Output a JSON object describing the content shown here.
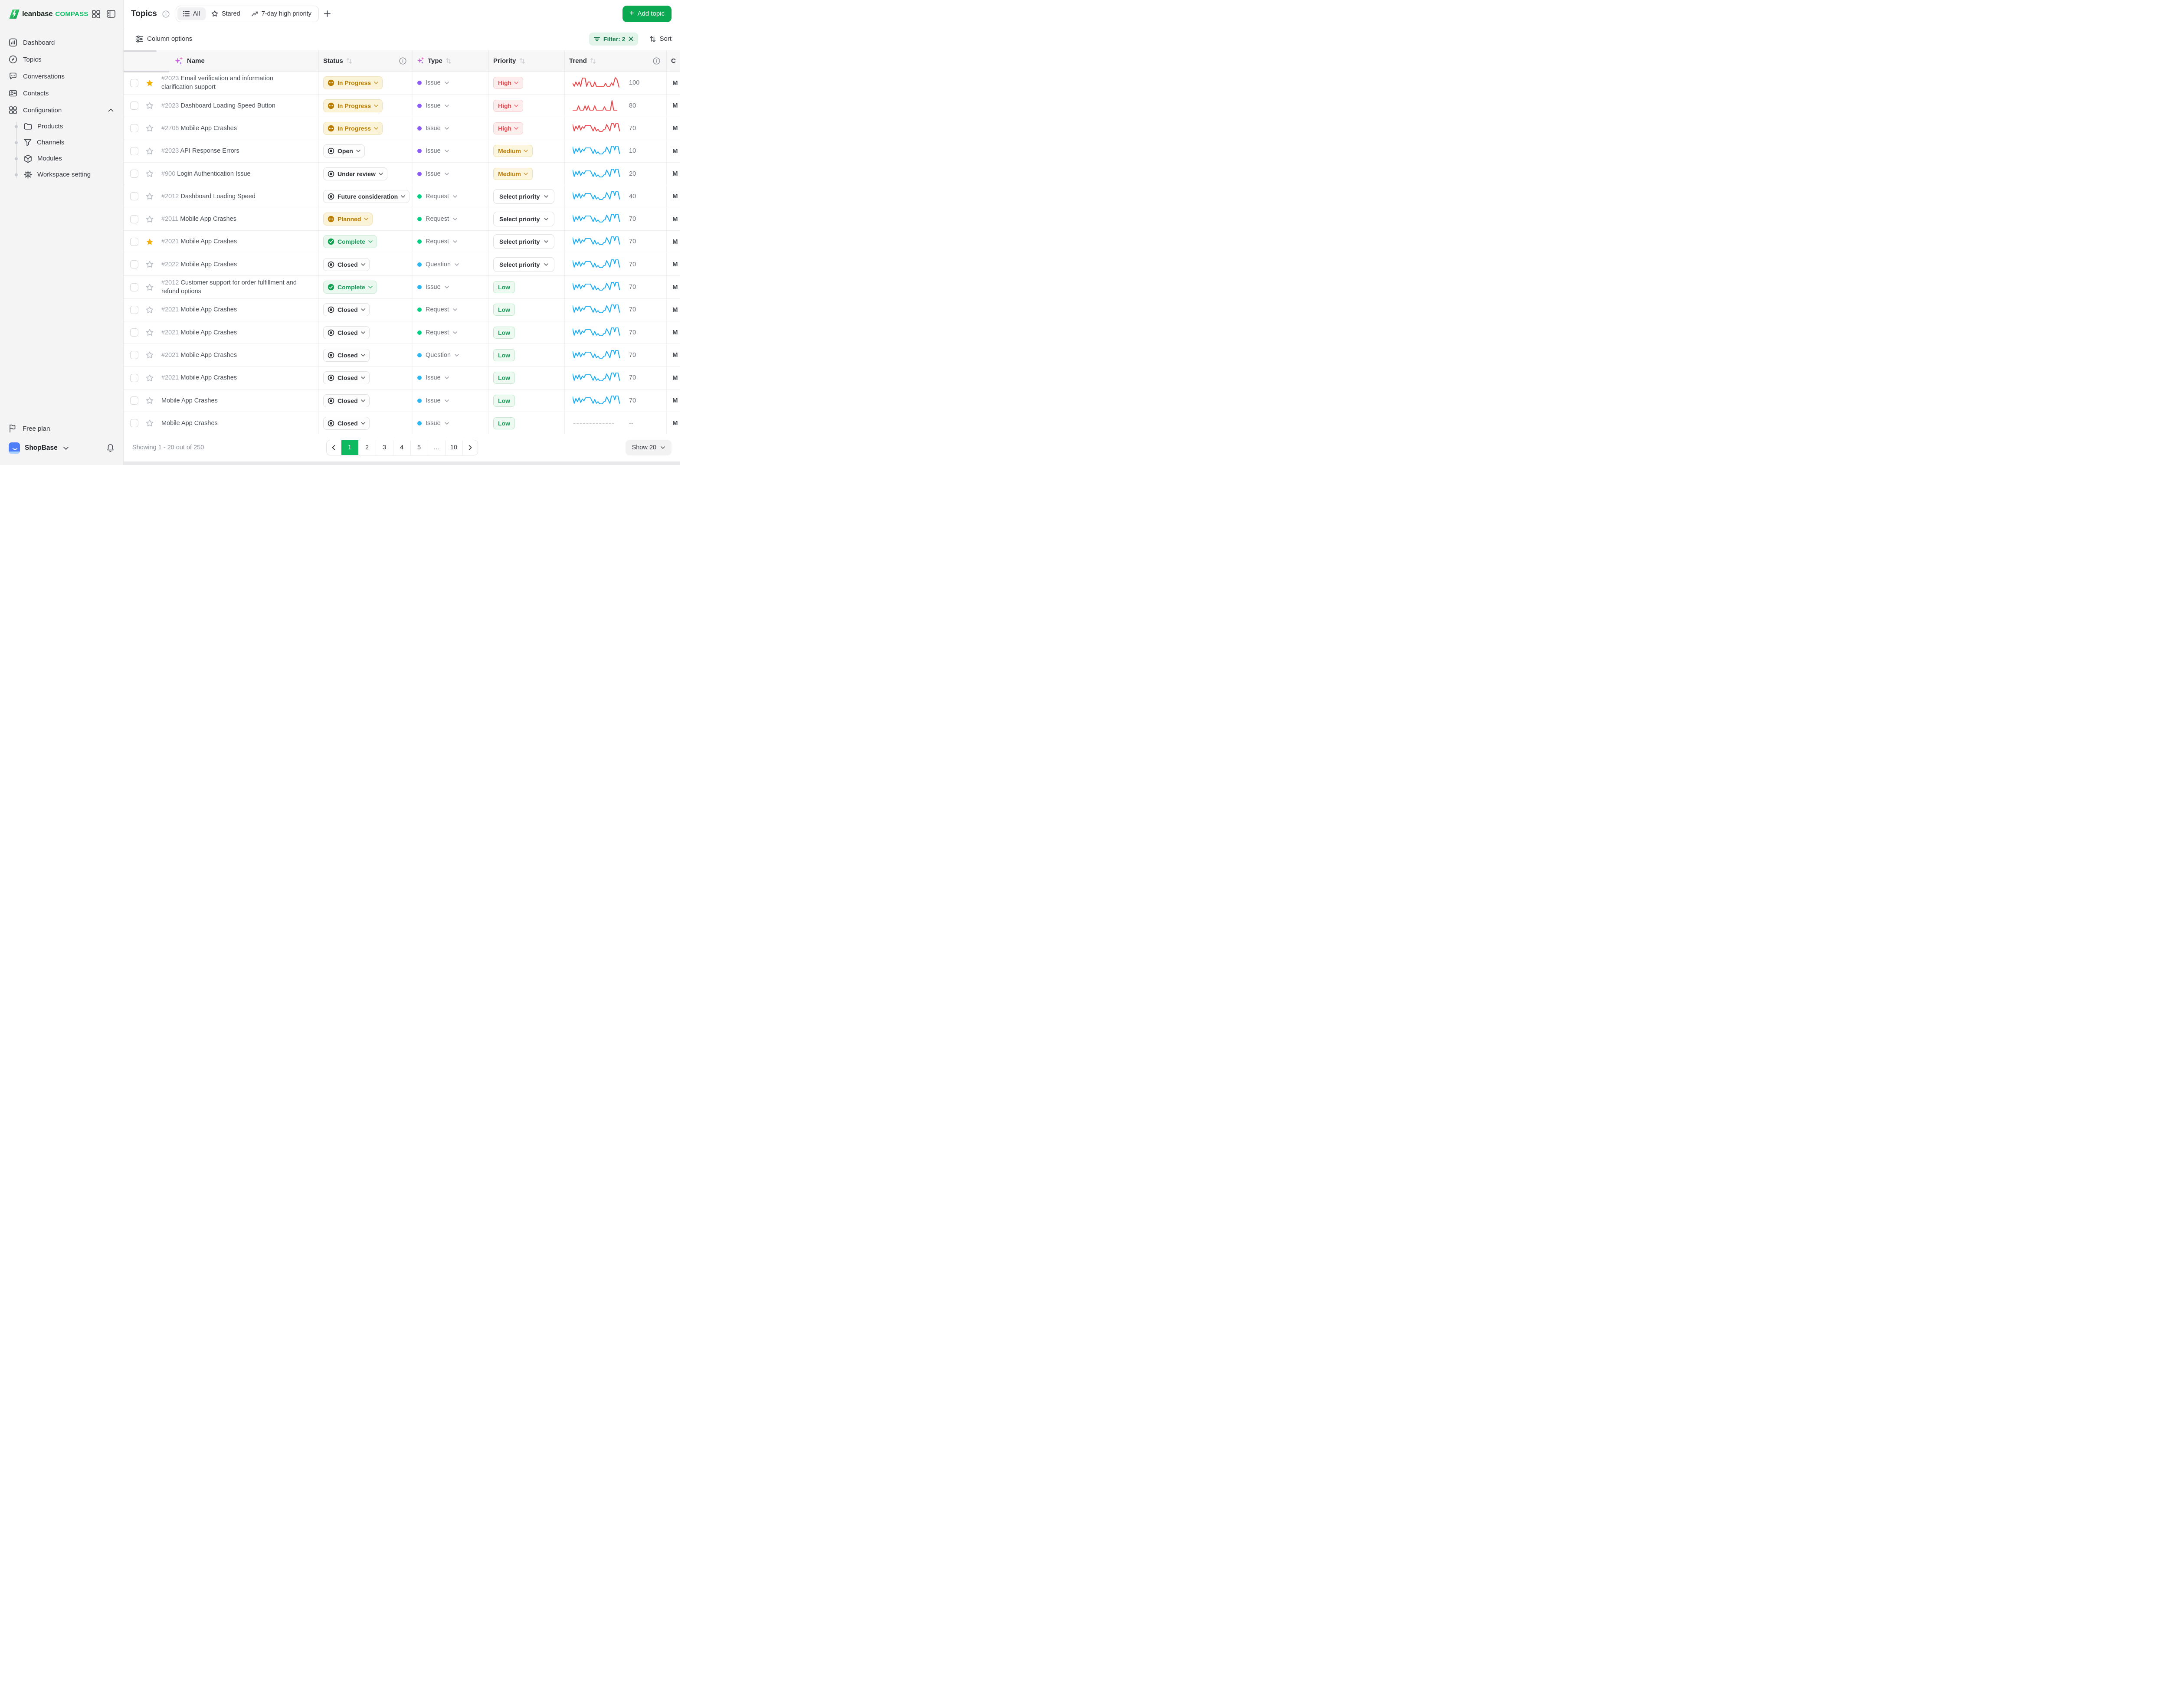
{
  "brand": {
    "name": "leanbase",
    "product": "COMPASS"
  },
  "sidebar": {
    "items": [
      {
        "label": "Dashboard",
        "icon": "bar-chart"
      },
      {
        "label": "Topics",
        "icon": "compass"
      },
      {
        "label": "Conversations",
        "icon": "chat-bubble"
      },
      {
        "label": "Contacts",
        "icon": "id-card"
      },
      {
        "label": "Configuration",
        "icon": "grid"
      }
    ],
    "config_children": [
      {
        "label": "Products",
        "icon": "folder"
      },
      {
        "label": "Channels",
        "icon": "funnel"
      },
      {
        "label": "Modules",
        "icon": "cube"
      },
      {
        "label": "Workspace setting",
        "icon": "gear"
      }
    ],
    "plan": "Free plan",
    "workspace": "ShopBase"
  },
  "header": {
    "title": "Topics",
    "tabs": [
      {
        "label": "All",
        "icon": "list",
        "active": true
      },
      {
        "label": "Stared",
        "icon": "star",
        "active": false
      },
      {
        "label": "7-day high priority",
        "icon": "trending-up",
        "active": false
      }
    ],
    "add_button": "Add topic"
  },
  "toolbar": {
    "column_options": "Column options",
    "filter": "Filter: 2",
    "sort": "Sort"
  },
  "table": {
    "columns": [
      {
        "label": "Name"
      },
      {
        "label": "Status"
      },
      {
        "label": "Type"
      },
      {
        "label": "Priority"
      },
      {
        "label": "Trend"
      }
    ],
    "clipped_column": "C",
    "clipped_cell": "M",
    "rows": [
      {
        "id": "#2023",
        "name": "Email verification and information clarification support",
        "starred": true,
        "status": "In Progress",
        "status_kind": "amber",
        "type": "Issue",
        "dot": "purple",
        "priority": "High",
        "priority_kind": "high",
        "trend": "100",
        "spark": "A",
        "spark_color": "red"
      },
      {
        "id": "#2023",
        "name": "Dashboard Loading Speed Button",
        "starred": false,
        "status": "In Progress",
        "status_kind": "amber",
        "type": "Issue",
        "dot": "purple",
        "priority": "High",
        "priority_kind": "high",
        "trend": "80",
        "spark": "B",
        "spark_color": "red"
      },
      {
        "id": "#2706",
        "name": "Mobile App Crashes",
        "starred": false,
        "status": "In Progress",
        "status_kind": "amber",
        "type": "Issue",
        "dot": "purple",
        "priority": "High",
        "priority_kind": "high",
        "trend": "70",
        "spark": "C",
        "spark_color": "red"
      },
      {
        "id": "#2023",
        "name": "API Response Errors",
        "starred": false,
        "status": "Open",
        "status_kind": "gray",
        "type": "Issue",
        "dot": "purple",
        "priority": "Medium",
        "priority_kind": "medium",
        "trend": "10",
        "spark": "C",
        "spark_color": "blue"
      },
      {
        "id": "#900",
        "name": "Login Authentication Issue",
        "starred": false,
        "status": "Under review",
        "status_kind": "gray",
        "type": "Issue",
        "dot": "purple",
        "priority": "Medium",
        "priority_kind": "medium",
        "trend": "20",
        "spark": "C",
        "spark_color": "blue"
      },
      {
        "id": "#2012",
        "name": "Dashboard Loading Speed",
        "starred": false,
        "status": "Future consideration",
        "status_kind": "gray",
        "type": "Request",
        "dot": "green",
        "priority": "Select priority",
        "priority_kind": "select",
        "trend": "40",
        "spark": "C",
        "spark_color": "blue"
      },
      {
        "id": "#2011",
        "name": "Mobile App Crashes",
        "starred": false,
        "status": "Planned",
        "status_kind": "amber",
        "type": "Request",
        "dot": "green",
        "priority": "Select priority",
        "priority_kind": "select",
        "trend": "70",
        "spark": "C",
        "spark_color": "blue"
      },
      {
        "id": "#2021",
        "name": "Mobile App Crashes",
        "starred": true,
        "status": "Complete",
        "status_kind": "green",
        "type": "Request",
        "dot": "green",
        "priority": "Select priority",
        "priority_kind": "select",
        "trend": "70",
        "spark": "C",
        "spark_color": "blue"
      },
      {
        "id": "#2022",
        "name": "Mobile App Crashes",
        "starred": false,
        "status": "Closed",
        "status_kind": "gray",
        "type": "Question",
        "dot": "blue",
        "priority": "Select priority",
        "priority_kind": "select",
        "trend": "70",
        "spark": "C",
        "spark_color": "blue"
      },
      {
        "id": "#2012",
        "name": "Customer support for order fulfillment and refund options",
        "starred": false,
        "status": "Complete",
        "status_kind": "green",
        "type": "Issue",
        "dot": "blue",
        "priority": "Low",
        "priority_kind": "low",
        "trend": "70",
        "spark": "C",
        "spark_color": "blue"
      },
      {
        "id": "#2021",
        "name": "Mobile App Crashes",
        "starred": false,
        "status": "Closed",
        "status_kind": "gray",
        "type": "Request",
        "dot": "green",
        "priority": "Low",
        "priority_kind": "low",
        "trend": "70",
        "spark": "C",
        "spark_color": "blue"
      },
      {
        "id": "#2021",
        "name": "Mobile App Crashes",
        "starred": false,
        "status": "Closed",
        "status_kind": "gray",
        "type": "Request",
        "dot": "green",
        "priority": "Low",
        "priority_kind": "low",
        "trend": "70",
        "spark": "C",
        "spark_color": "blue"
      },
      {
        "id": "#2021",
        "name": "Mobile App Crashes",
        "starred": false,
        "status": "Closed",
        "status_kind": "gray",
        "type": "Question",
        "dot": "blue",
        "priority": "Low",
        "priority_kind": "low",
        "trend": "70",
        "spark": "C",
        "spark_color": "blue"
      },
      {
        "id": "#2021",
        "name": "Mobile App Crashes",
        "starred": false,
        "status": "Closed",
        "status_kind": "gray",
        "type": "Issue",
        "dot": "blue",
        "priority": "Low",
        "priority_kind": "low",
        "trend": "70",
        "spark": "C",
        "spark_color": "blue"
      },
      {
        "id": "",
        "name": "Mobile App Crashes",
        "starred": false,
        "status": "Closed",
        "status_kind": "gray",
        "type": "Issue",
        "dot": "blue",
        "priority": "Low",
        "priority_kind": "low",
        "trend": "70",
        "spark": "C",
        "spark_color": "blue"
      },
      {
        "id": "",
        "name": "Mobile App Crashes",
        "starred": false,
        "status": "Closed",
        "status_kind": "gray",
        "type": "Issue",
        "dot": "blue",
        "priority": "Low",
        "priority_kind": "low",
        "trend": "--",
        "spark": "dotted",
        "spark_color": "gray"
      }
    ]
  },
  "pagination": {
    "summary": "Showing 1 - 20 out of 250",
    "pages": [
      "1",
      "2",
      "3",
      "4",
      "5",
      "...",
      "10"
    ],
    "active_page": "1",
    "show_label": "Show 20"
  },
  "colors": {
    "brand_green": "#0CA953",
    "accent_green": "#0FBF66",
    "filter_bg": "#E3F5EB",
    "filter_text": "#187A4C",
    "amber": "#BA7D00",
    "red": "#E5484D",
    "green": "#16A05A",
    "dot_purple": "#8B5CF6",
    "dot_green": "#00D084",
    "dot_blue": "#2CB7F2",
    "spark_red": "#E5484D",
    "spark_blue": "#20AEF0",
    "star_yellow": "#F0B008"
  }
}
